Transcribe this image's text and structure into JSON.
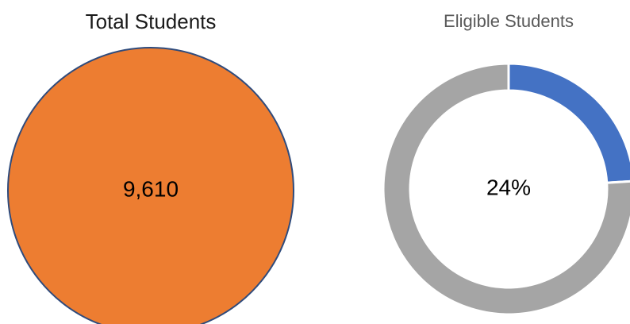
{
  "chart_data": [
    {
      "type": "pie",
      "title": "Total Students",
      "center_label": "9,610",
      "slices": [
        {
          "name": "",
          "value": 9610,
          "color": "#ED7D31"
        }
      ],
      "outline_color": "#2F4B7C"
    },
    {
      "type": "pie",
      "variant": "donut",
      "title": "Eligible Students",
      "center_label": "24%",
      "slices": [
        {
          "name": "",
          "value": 24,
          "color": "#4472C4"
        },
        {
          "name": "",
          "value": 76,
          "color": "#A5A5A5"
        }
      ]
    }
  ]
}
